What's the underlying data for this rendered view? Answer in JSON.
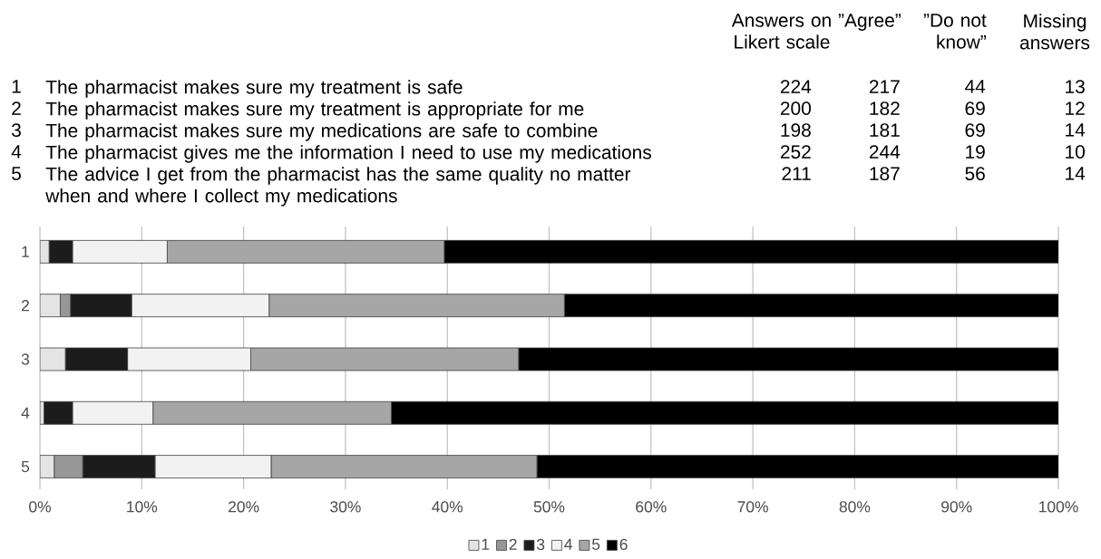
{
  "chart_data": {
    "type": "bar",
    "orientation": "horizontal",
    "stacked": true,
    "categories": [
      "1",
      "2",
      "3",
      "4",
      "5"
    ],
    "series": [
      {
        "name": "1",
        "color": "#e4e4e4",
        "values": [
          0.9,
          2.0,
          2.5,
          0.4,
          1.4
        ]
      },
      {
        "name": "2",
        "color": "#979797",
        "values": [
          0,
          1.0,
          0,
          0,
          2.8
        ]
      },
      {
        "name": "3",
        "color": "#1c1c1c",
        "values": [
          2.3,
          6.0,
          6.1,
          2.8,
          7.1
        ]
      },
      {
        "name": "4",
        "color": "#f2f2f2",
        "values": [
          9.3,
          13.5,
          12.1,
          7.9,
          11.4
        ]
      },
      {
        "name": "5",
        "color": "#a6a6a6",
        "values": [
          27.2,
          29.0,
          26.3,
          23.4,
          26.1
        ]
      },
      {
        "name": "6",
        "color": "#000000",
        "values": [
          60.3,
          48.5,
          53.0,
          65.5,
          51.2
        ]
      }
    ],
    "xlim": [
      0,
      100
    ],
    "xticks": [
      {
        "value": 0,
        "label": "0%"
      },
      {
        "value": 10,
        "label": "10%"
      },
      {
        "value": 20,
        "label": "20%"
      },
      {
        "value": 30,
        "label": "30%"
      },
      {
        "value": 40,
        "label": "40%"
      },
      {
        "value": 50,
        "label": "50%"
      },
      {
        "value": 60,
        "label": "60%"
      },
      {
        "value": 70,
        "label": "70%"
      },
      {
        "value": 80,
        "label": "80%"
      },
      {
        "value": 90,
        "label": "90%"
      },
      {
        "value": 100,
        "label": "100%"
      }
    ],
    "grid": "x",
    "legend": "bottom",
    "annotations": [
      "Answers on Likert scale",
      "”Agree”",
      "”Do not know”",
      "Missing answers",
      "1",
      "The pharmacist makes sure my treatment is safe",
      "224",
      "217",
      "44",
      "13",
      "2",
      "The pharmacist makes sure my treatment is appropriate for me",
      "200",
      "182",
      "69",
      "12",
      "3",
      "The pharmacist makes sure my medications are safe to combine",
      "198",
      "181",
      "69",
      "14",
      "4",
      "The pharmacist gives me the information I need to use my medications",
      "252",
      "244",
      "19",
      "10",
      "5",
      "The advice I get from the pharmacist has the same quality no matter when and where I collect my medications",
      "211",
      "187",
      "56",
      "14"
    ]
  }
}
